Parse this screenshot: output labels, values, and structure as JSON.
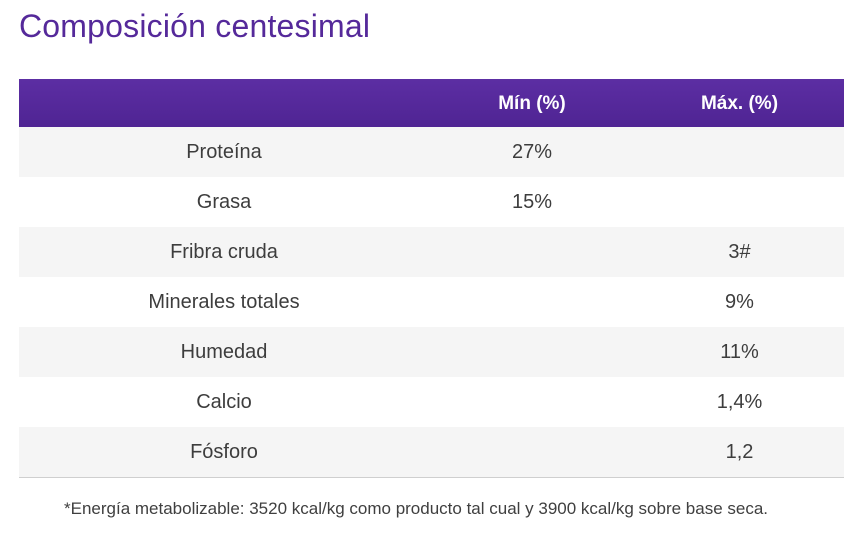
{
  "title": "Composición centesimal",
  "table": {
    "headers": [
      "",
      "Mín (%)",
      "Máx. (%)"
    ],
    "rows": [
      {
        "name": "Proteína",
        "min": "27%",
        "max": ""
      },
      {
        "name": "Grasa",
        "min": "15%",
        "max": ""
      },
      {
        "name": "Fribra cruda",
        "min": "",
        "max": "3#"
      },
      {
        "name": "Minerales totales",
        "min": "",
        "max": "9%"
      },
      {
        "name": "Humedad",
        "min": "",
        "max": "11%"
      },
      {
        "name": "Calcio",
        "min": "",
        "max": "1,4%"
      },
      {
        "name": "Fósforo",
        "min": "",
        "max": "1,2"
      }
    ]
  },
  "footnote": "*Energía metabolizable: 3520 kcal/kg como producto tal cual y 3900 kcal/kg sobre base seca.",
  "colors": {
    "accent": "#55299a",
    "header_bg": "#5c2ea3",
    "row_shade": "#f5f5f5"
  }
}
